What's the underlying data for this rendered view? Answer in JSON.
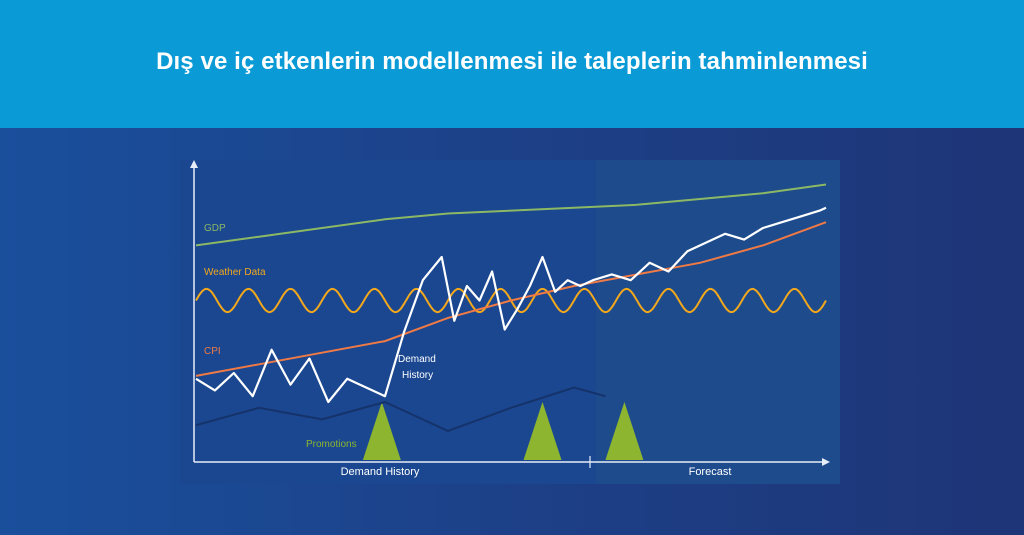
{
  "header": {
    "title": "Dış ve iç etkenlerin modellenmesi ile taleplerin tahminlenmesi"
  },
  "colors": {
    "header_bg": "#0a9ad6",
    "gdp": "#8cb865",
    "weather": "#f3a81c",
    "cpi": "#f07a45",
    "demand": "#ffffff",
    "promotions": "#8db52f",
    "forecast_bg": "#1d4b8c"
  },
  "chart_data": {
    "type": "line",
    "xlabels": [
      "Demand History",
      "Forecast"
    ],
    "series_labels": {
      "gdp": "GDP",
      "weather": "Weather Data",
      "cpi": "CPI",
      "demand": "Demand\nHistory",
      "promotions": "Promotions"
    },
    "demand_label_lines": [
      "Demand",
      "History"
    ],
    "x_range": [
      0,
      100
    ],
    "y_range": [
      0,
      100
    ],
    "forecast_start": 63.5,
    "series": [
      {
        "name": "GDP",
        "key": "gdp",
        "x": [
          0,
          10,
          20,
          30,
          40,
          50,
          60,
          70,
          80,
          90,
          100
        ],
        "values": [
          74,
          77,
          80,
          83,
          85,
          86,
          87,
          88,
          90,
          92,
          95
        ]
      },
      {
        "name": "CPI",
        "key": "cpi",
        "x": [
          0,
          10,
          20,
          30,
          40,
          50,
          60,
          70,
          80,
          90,
          100
        ],
        "values": [
          29,
          33,
          37,
          41,
          49,
          55,
          60,
          64,
          68,
          74,
          82
        ]
      },
      {
        "name": "Demand History",
        "key": "demand",
        "x": [
          0,
          3,
          6,
          9,
          12,
          15,
          18,
          21,
          24,
          27,
          30,
          33,
          36,
          39,
          41,
          43,
          45,
          47,
          49,
          51,
          53,
          55,
          57,
          59,
          61,
          63,
          66,
          69,
          72,
          75,
          78,
          81,
          84,
          87,
          90,
          93,
          96,
          99,
          100
        ],
        "values": [
          28,
          24,
          30,
          22,
          38,
          26,
          35,
          20,
          28,
          25,
          22,
          44,
          62,
          70,
          48,
          60,
          55,
          65,
          45,
          52,
          60,
          70,
          58,
          62,
          60,
          62,
          64,
          62,
          68,
          65,
          72,
          75,
          78,
          76,
          80,
          82,
          84,
          86,
          87
        ]
      },
      {
        "name": "Baseline",
        "key": "baseline",
        "x": [
          0,
          10,
          20,
          30,
          40,
          50,
          60,
          65
        ],
        "values": [
          12,
          18,
          14,
          20,
          10,
          18,
          25,
          22
        ]
      }
    ],
    "weather": {
      "level": 55,
      "amplitude": 4,
      "cycles": 15
    },
    "promotions": [
      {
        "x": 29.5,
        "height": 20
      },
      {
        "x": 55,
        "height": 20
      },
      {
        "x": 68,
        "height": 20
      }
    ]
  }
}
